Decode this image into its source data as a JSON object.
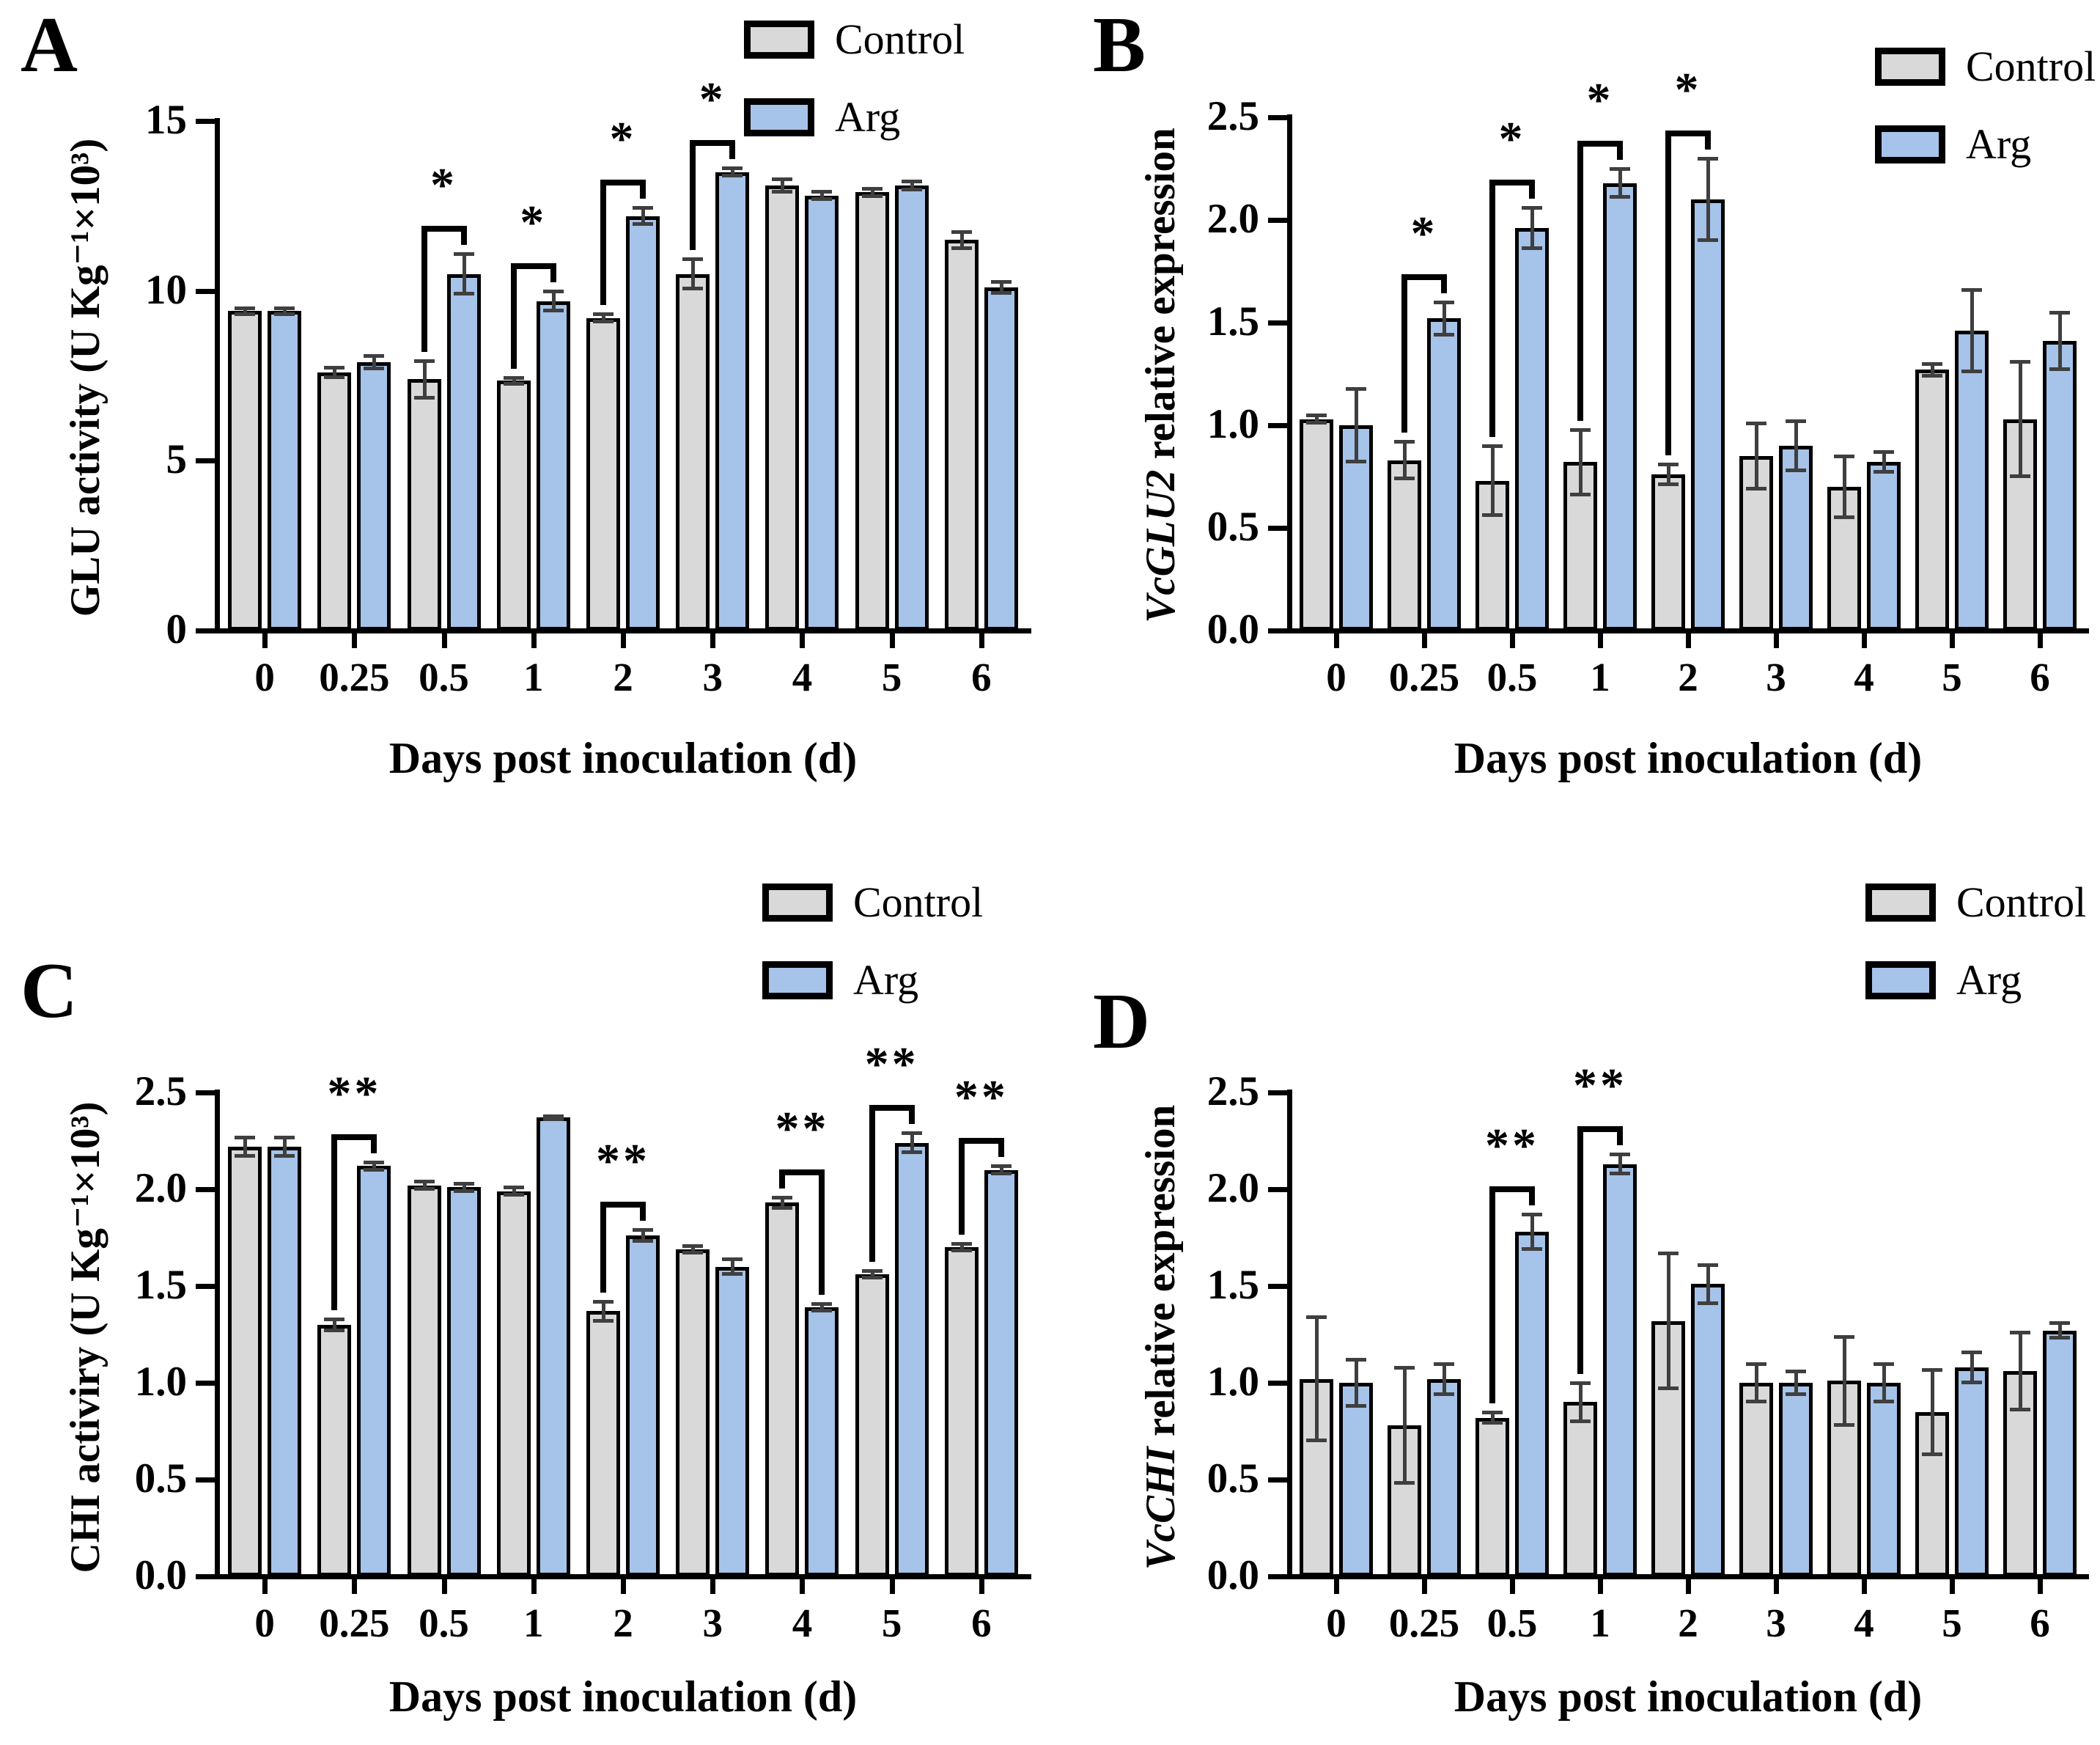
{
  "figure": {
    "legend": {
      "control_label": "Control",
      "arg_label": "Arg"
    },
    "colors": {
      "control_fill": "#d9d9d9",
      "arg_fill": "#a6c3e9",
      "bar_border": "#000000",
      "error_bar": "#3f3f3f",
      "axis": "#000000"
    }
  },
  "chart_data": [
    {
      "panel_label": "A",
      "type": "bar",
      "title": "",
      "xlabel": "Days post inoculation (d)",
      "ylabel_italic": "",
      "ylabel_rest": "GLU activity (U Kg⁻¹×10³)",
      "ylim": [
        0,
        15
      ],
      "yticks": [
        "0",
        "5",
        "10",
        "15"
      ],
      "categories": [
        "0",
        "0.25",
        "0.5",
        "1",
        "2",
        "3",
        "4",
        "5",
        "6"
      ],
      "legend_position": "top-right",
      "grid": false,
      "series": [
        {
          "name": "Control",
          "values": [
            9.4,
            7.6,
            7.4,
            7.35,
            9.2,
            10.5,
            13.1,
            12.9,
            11.5
          ],
          "errors": [
            0.1,
            0.15,
            0.55,
            0.1,
            0.12,
            0.45,
            0.2,
            0.12,
            0.25
          ]
        },
        {
          "name": "Arg",
          "values": [
            9.4,
            7.9,
            10.5,
            9.7,
            12.2,
            13.5,
            12.8,
            13.1,
            10.1
          ],
          "errors": [
            0.1,
            0.2,
            0.6,
            0.3,
            0.25,
            0.12,
            0.12,
            0.12,
            0.18
          ]
        }
      ],
      "significance": [
        {
          "index": 2,
          "category": "0.5",
          "label": "*"
        },
        {
          "index": 3,
          "category": "1",
          "label": "*"
        },
        {
          "index": 4,
          "category": "2",
          "label": "*"
        },
        {
          "index": 5,
          "category": "3",
          "label": "*"
        }
      ]
    },
    {
      "panel_label": "B",
      "type": "bar",
      "title": "",
      "xlabel": "Days post inoculation (d)",
      "ylabel_italic": "VcGLU2",
      "ylabel_rest": " relative expression",
      "ylim": [
        0,
        2.5
      ],
      "yticks": [
        "0.0",
        "0.5",
        "1.0",
        "1.5",
        "2.0",
        "2.5"
      ],
      "categories": [
        "0",
        "0.25",
        "0.5",
        "1",
        "2",
        "3",
        "4",
        "5",
        "6"
      ],
      "legend_position": "top-right",
      "grid": false,
      "series": [
        {
          "name": "Control",
          "values": [
            1.03,
            0.83,
            0.73,
            0.82,
            0.76,
            0.85,
            0.7,
            1.27,
            1.03
          ],
          "errors": [
            0.02,
            0.09,
            0.17,
            0.16,
            0.05,
            0.16,
            0.15,
            0.03,
            0.28
          ]
        },
        {
          "name": "Arg",
          "values": [
            1.0,
            1.52,
            1.96,
            2.18,
            2.1,
            0.9,
            0.82,
            1.46,
            1.41
          ],
          "errors": [
            0.18,
            0.08,
            0.1,
            0.07,
            0.2,
            0.12,
            0.05,
            0.2,
            0.14
          ]
        }
      ],
      "significance": [
        {
          "index": 1,
          "category": "0.25",
          "label": "*"
        },
        {
          "index": 2,
          "category": "0.5",
          "label": "*"
        },
        {
          "index": 3,
          "category": "1",
          "label": "*"
        },
        {
          "index": 4,
          "category": "2",
          "label": "*"
        }
      ]
    },
    {
      "panel_label": "C",
      "type": "bar",
      "title": "",
      "xlabel": "Days post inoculation (d)",
      "ylabel_italic": "",
      "ylabel_rest": "CHI activiry (U Kg⁻¹×10³)",
      "ylim": [
        0,
        2.5
      ],
      "yticks": [
        "0.0",
        "0.5",
        "1.0",
        "1.5",
        "2.0",
        "2.5"
      ],
      "categories": [
        "0",
        "0.25",
        "0.5",
        "1",
        "2",
        "3",
        "4",
        "5",
        "6"
      ],
      "legend_position": "top-right",
      "grid": false,
      "series": [
        {
          "name": "Control",
          "values": [
            2.22,
            1.3,
            2.02,
            1.99,
            1.37,
            1.69,
            1.93,
            1.56,
            1.7
          ],
          "errors": [
            0.05,
            0.03,
            0.02,
            0.02,
            0.05,
            0.02,
            0.03,
            0.02,
            0.02
          ]
        },
        {
          "name": "Arg",
          "values": [
            2.22,
            2.12,
            2.01,
            2.37,
            1.76,
            1.6,
            1.39,
            2.24,
            2.1
          ],
          "errors": [
            0.05,
            0.02,
            0.02,
            0.01,
            0.03,
            0.04,
            0.02,
            0.05,
            0.02
          ]
        }
      ],
      "significance": [
        {
          "index": 1,
          "category": "0.25",
          "label": "**"
        },
        {
          "index": 4,
          "category": "2",
          "label": "**"
        },
        {
          "index": 6,
          "category": "4",
          "label": "**"
        },
        {
          "index": 7,
          "category": "5",
          "label": "**"
        },
        {
          "index": 8,
          "category": "6",
          "label": "**"
        }
      ]
    },
    {
      "panel_label": "D",
      "type": "bar",
      "title": "",
      "xlabel": "Days post inoculation (d)",
      "ylabel_italic": "VcCHI",
      "ylabel_rest": " relative expression",
      "ylim": [
        0,
        2.5
      ],
      "yticks": [
        "0.0",
        "0.5",
        "1.0",
        "1.5",
        "2.0",
        "2.5"
      ],
      "categories": [
        "0",
        "0.25",
        "0.5",
        "1",
        "2",
        "3",
        "4",
        "5",
        "6"
      ],
      "legend_position": "top-right",
      "grid": false,
      "series": [
        {
          "name": "Control",
          "values": [
            1.02,
            0.78,
            0.82,
            0.9,
            1.32,
            1.0,
            1.01,
            0.85,
            1.06
          ],
          "errors": [
            0.32,
            0.3,
            0.03,
            0.1,
            0.35,
            0.1,
            0.23,
            0.22,
            0.2
          ]
        },
        {
          "name": "Arg",
          "values": [
            1.0,
            1.02,
            1.78,
            2.13,
            1.51,
            1.0,
            1.0,
            1.08,
            1.27
          ],
          "errors": [
            0.12,
            0.08,
            0.09,
            0.05,
            0.1,
            0.06,
            0.1,
            0.08,
            0.04
          ]
        }
      ],
      "significance": [
        {
          "index": 2,
          "category": "0.5",
          "label": "**"
        },
        {
          "index": 3,
          "category": "1",
          "label": "**"
        }
      ]
    }
  ]
}
